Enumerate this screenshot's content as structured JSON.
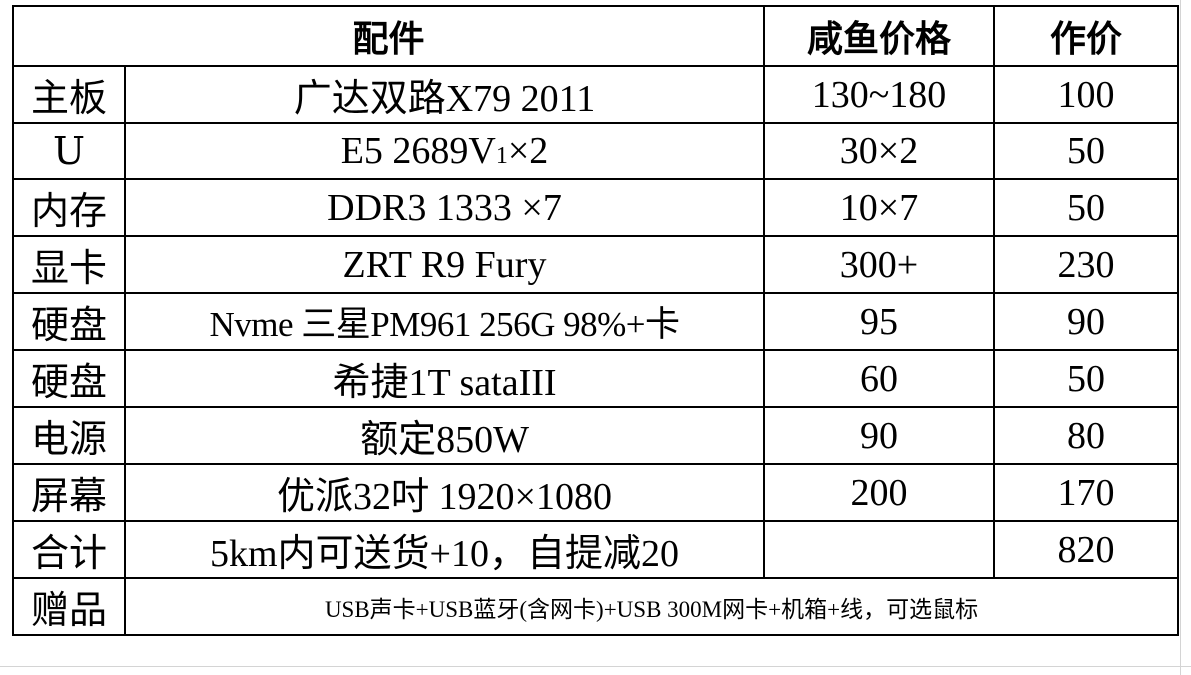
{
  "table": {
    "headers": {
      "part": "配件",
      "xianyu_price": "咸鱼价格",
      "our_price": "作价"
    },
    "rows": [
      {
        "category": "主板",
        "item": "广达双路X79 2011",
        "xianyu_price": "130~180",
        "our_price": "100"
      },
      {
        "category": "U",
        "item_prefix": "E5 2689V",
        "item_sub": "1",
        "item_suffix": "×2",
        "xianyu_price": "30×2",
        "our_price": "50"
      },
      {
        "category": "内存",
        "item": "DDR3 1333 ×7",
        "xianyu_price": "10×7",
        "our_price": "50"
      },
      {
        "category": "显卡",
        "item": "ZRT R9 Fury",
        "xianyu_price": "300+",
        "our_price": "230"
      },
      {
        "category": "硬盘",
        "item": "Nvme 三星PM961 256G 98%+卡",
        "xianyu_price": "95",
        "our_price": "90"
      },
      {
        "category": "硬盘",
        "item": "希捷1T sataIII",
        "xianyu_price": "60",
        "our_price": "50"
      },
      {
        "category": "电源",
        "item": "额定850W",
        "xianyu_price": "90",
        "our_price": "80"
      },
      {
        "category": "屏幕",
        "item": "优派32吋 1920×1080",
        "xianyu_price": "200",
        "our_price": "170"
      },
      {
        "category": "合计",
        "item": "5km内可送货+10，自提减20",
        "xianyu_price": "",
        "our_price": "820"
      },
      {
        "category": "赠品",
        "item": "USB声卡+USB蓝牙(含网卡)+USB 300M网卡+机箱+线，可选鼠标"
      }
    ]
  }
}
